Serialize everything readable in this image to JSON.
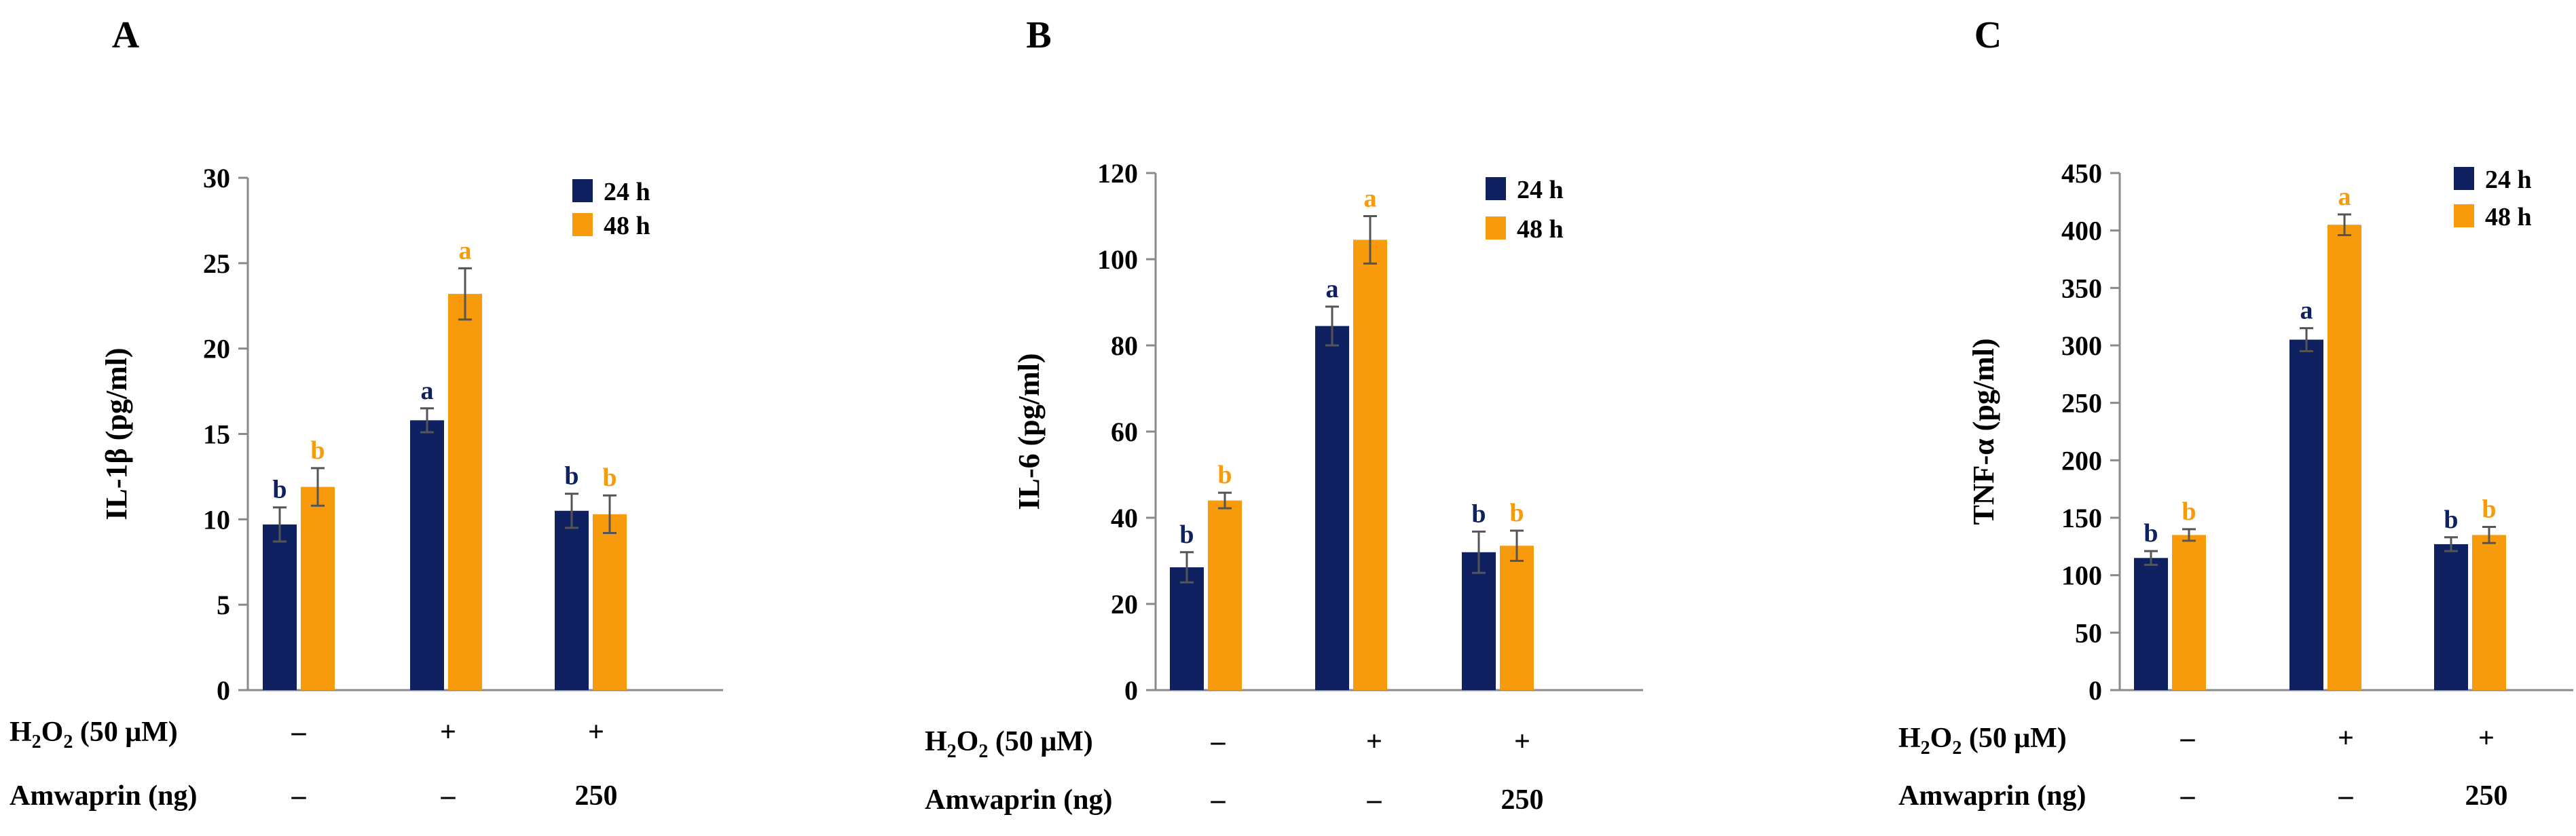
{
  "colors": {
    "series_24h": "#0f2160",
    "series_48h": "#f79a0c",
    "axis": "#8a8a8a",
    "text": "#000000"
  },
  "row_labels": {
    "h2o2_prefix": "H",
    "h2o2_sub1": "2",
    "h2o2_mid": "O",
    "h2o2_sub2": "2",
    "h2o2_suffix": " (50 μM)",
    "amwaprin": "Amwaprin (ng)"
  },
  "chart_data": [
    {
      "type": "bar",
      "panel_label": "A",
      "ylabel": "IL-1β (pg/ml)",
      "ylim": [
        0,
        30
      ],
      "yticks": [
        "0",
        "5",
        "10",
        "15",
        "20",
        "25",
        "30"
      ],
      "legend": [
        "24 h",
        "48 h"
      ],
      "legend_position": "top-right",
      "h2o2_row": [
        "–",
        "+",
        "+"
      ],
      "amwaprin_row": [
        "–",
        "–",
        "250"
      ],
      "series": [
        {
          "name": "24 h",
          "values": [
            9.7,
            15.8,
            10.5
          ],
          "errors": [
            1.0,
            0.7,
            1.0
          ],
          "letters": [
            "b",
            "a",
            "b"
          ]
        },
        {
          "name": "48 h",
          "values": [
            11.9,
            23.2,
            10.3
          ],
          "errors": [
            1.1,
            1.5,
            1.1
          ],
          "letters": [
            "b",
            "a",
            "b"
          ]
        }
      ]
    },
    {
      "type": "bar",
      "panel_label": "B",
      "ylabel": "IL-6 (pg/ml)",
      "ylim": [
        0,
        120
      ],
      "yticks": [
        "0",
        "20",
        "40",
        "60",
        "80",
        "100",
        "120"
      ],
      "legend": [
        "24 h",
        "48 h"
      ],
      "legend_position": "top-right",
      "h2o2_row": [
        "–",
        "+",
        "+"
      ],
      "amwaprin_row": [
        "–",
        "–",
        "250"
      ],
      "series": [
        {
          "name": "24 h",
          "values": [
            28.5,
            84.5,
            32
          ],
          "errors": [
            3.5,
            4.5,
            4.8
          ],
          "letters": [
            "b",
            "a",
            "b"
          ]
        },
        {
          "name": "48 h",
          "values": [
            44,
            104.5,
            33.5
          ],
          "errors": [
            1.8,
            5.5,
            3.5
          ],
          "letters": [
            "b",
            "a",
            "b"
          ]
        }
      ]
    },
    {
      "type": "bar",
      "panel_label": "C",
      "ylabel": "TNF-α (pg/ml)",
      "ylim": [
        0,
        450
      ],
      "yticks": [
        "0",
        "50",
        "100",
        "150",
        "200",
        "250",
        "300",
        "350",
        "400",
        "450"
      ],
      "legend": [
        "24 h",
        "48 h"
      ],
      "legend_position": "top-right",
      "h2o2_row": [
        "–",
        "+",
        "+"
      ],
      "amwaprin_row": [
        "–",
        "–",
        "250"
      ],
      "series": [
        {
          "name": "24 h",
          "values": [
            115,
            305,
            127
          ],
          "errors": [
            6,
            10,
            6
          ],
          "letters": [
            "b",
            "a",
            "b"
          ]
        },
        {
          "name": "48 h",
          "values": [
            135,
            405,
            135
          ],
          "errors": [
            5,
            9,
            7
          ],
          "letters": [
            "b",
            "a",
            "b"
          ]
        }
      ]
    }
  ]
}
